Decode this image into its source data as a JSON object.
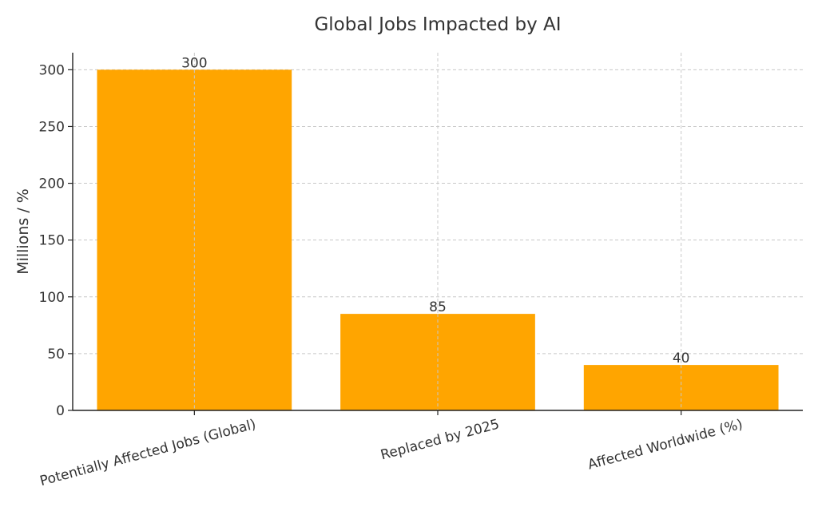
{
  "chart_data": {
    "type": "bar",
    "title": "Global Jobs Impacted by AI",
    "xlabel": "",
    "ylabel": "Millions / %",
    "categories": [
      "Potentially Affected Jobs (Global)",
      "Replaced by 2025",
      "Affected Worldwide (%)"
    ],
    "values": [
      300,
      85,
      40
    ],
    "data_labels": [
      "300",
      "85",
      "40"
    ],
    "ylim": [
      0,
      315
    ],
    "yticks": [
      0,
      50,
      100,
      150,
      200,
      250,
      300
    ],
    "bar_color": "#FFA500",
    "grid": true,
    "legend": "none"
  }
}
